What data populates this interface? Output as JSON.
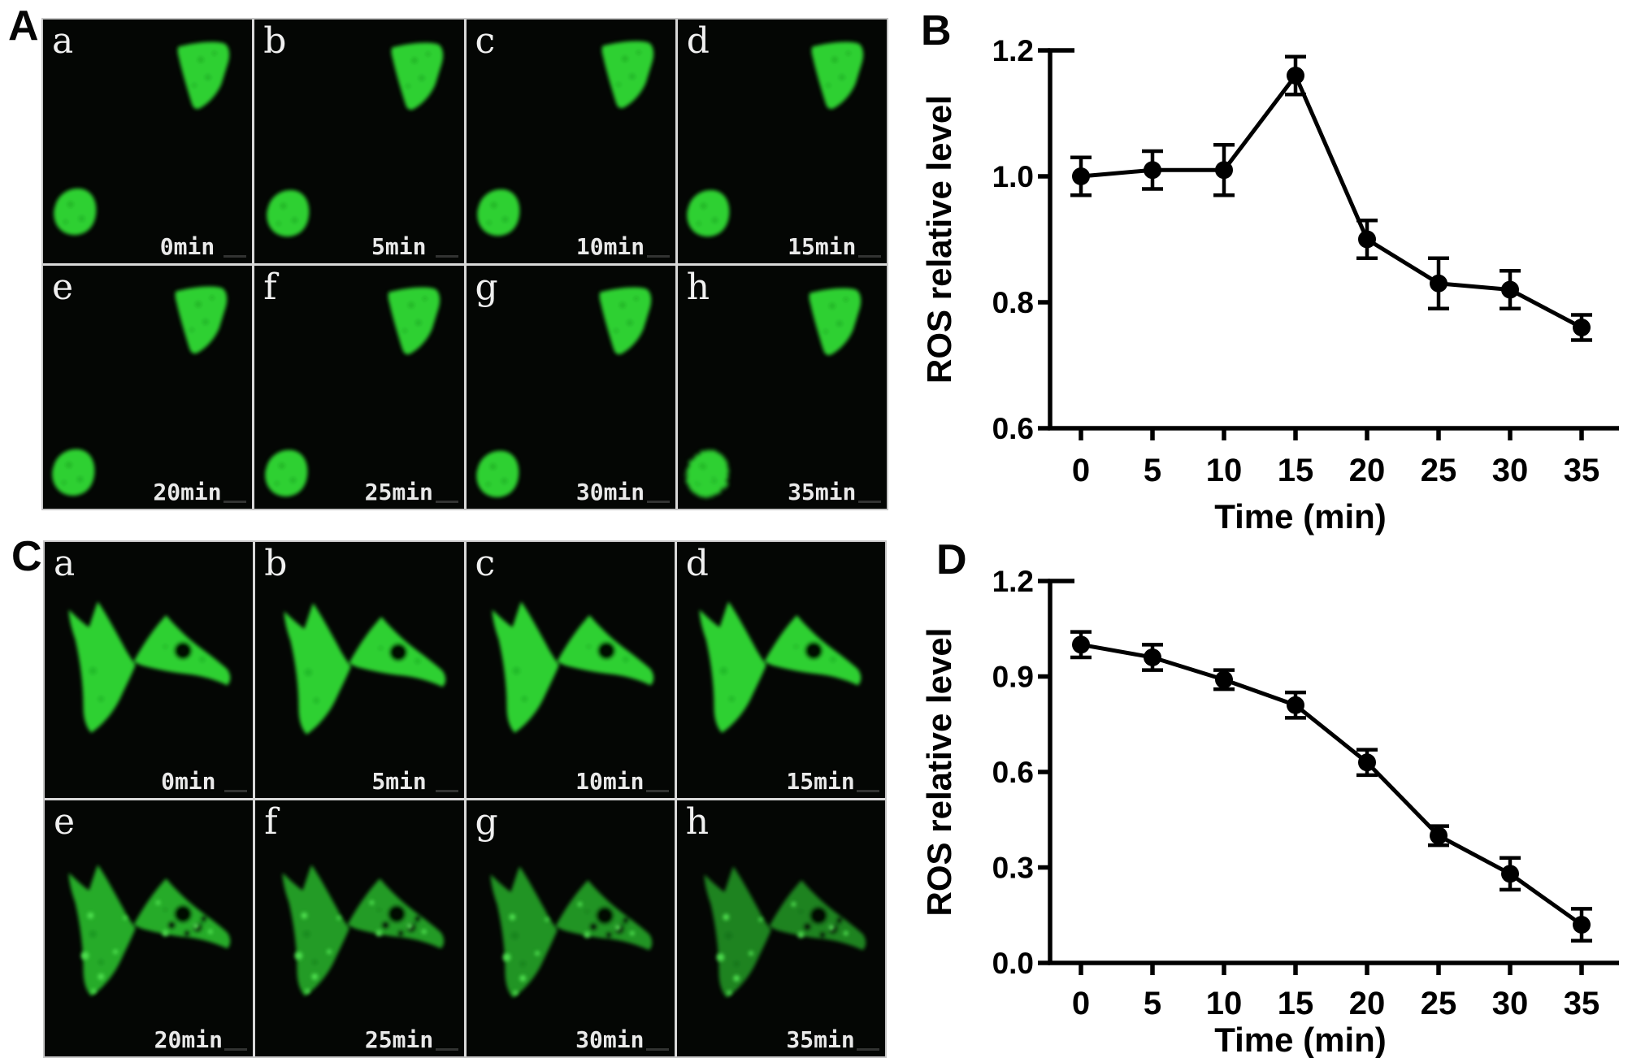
{
  "figure": {
    "panels": {
      "A": {
        "label": "A",
        "cells": [
          {
            "id": "a",
            "time": "0min"
          },
          {
            "id": "b",
            "time": "5min"
          },
          {
            "id": "c",
            "time": "10min"
          },
          {
            "id": "d",
            "time": "15min"
          },
          {
            "id": "e",
            "time": "20min"
          },
          {
            "id": "f",
            "time": "25min"
          },
          {
            "id": "g",
            "time": "30min"
          },
          {
            "id": "h",
            "time": "35min"
          }
        ]
      },
      "B": {
        "label": "B"
      },
      "C": {
        "label": "C",
        "cells": [
          {
            "id": "a",
            "time": "0min"
          },
          {
            "id": "b",
            "time": "5min"
          },
          {
            "id": "c",
            "time": "10min"
          },
          {
            "id": "d",
            "time": "15min"
          },
          {
            "id": "e",
            "time": "20min"
          },
          {
            "id": "f",
            "time": "25min"
          },
          {
            "id": "g",
            "time": "30min"
          },
          {
            "id": "h",
            "time": "35min"
          }
        ]
      },
      "D": {
        "label": "D"
      }
    }
  },
  "colors": {
    "cell_green": "#2fd033",
    "puncta_green": "#54e854",
    "micrograph_background": "#040604",
    "axis_black": "#000000",
    "grid_line": "#d8d8d8"
  },
  "chart_data": [
    {
      "id": "B",
      "type": "line",
      "x": [
        0,
        5,
        10,
        15,
        20,
        25,
        30,
        35
      ],
      "xticklabels": [
        "0",
        "5",
        "10",
        "15",
        "20",
        "25",
        "30",
        "35"
      ],
      "values": [
        1.0,
        1.01,
        1.01,
        1.16,
        0.9,
        0.83,
        0.82,
        0.76
      ],
      "errors": [
        0.03,
        0.03,
        0.04,
        0.03,
        0.03,
        0.04,
        0.03,
        0.02
      ],
      "xlabel": "Time (min)",
      "ylabel": "ROS relative level",
      "ylim": [
        0.6,
        1.2
      ],
      "yticks": [
        0.6,
        0.8,
        1.0,
        1.2
      ],
      "yticklabels": [
        "0.6",
        "0.8",
        "1.0",
        "1.2"
      ],
      "marker": "circle",
      "color": "#000000",
      "grid": false,
      "legend": null
    },
    {
      "id": "D",
      "type": "line",
      "x": [
        0,
        5,
        10,
        15,
        20,
        25,
        30,
        35
      ],
      "xticklabels": [
        "0",
        "5",
        "10",
        "15",
        "20",
        "25",
        "30",
        "35"
      ],
      "values": [
        1.0,
        0.96,
        0.89,
        0.81,
        0.63,
        0.4,
        0.28,
        0.12
      ],
      "errors": [
        0.04,
        0.04,
        0.03,
        0.04,
        0.04,
        0.03,
        0.05,
        0.05
      ],
      "xlabel": "Time (min)",
      "ylabel": "ROS relative level",
      "ylim": [
        0.0,
        1.2
      ],
      "yticks": [
        0.0,
        0.3,
        0.6,
        0.9,
        1.2
      ],
      "yticklabels": [
        "0.0",
        "0.3",
        "0.6",
        "0.9",
        "1.2"
      ],
      "marker": "circle",
      "color": "#000000",
      "grid": false,
      "legend": null
    }
  ]
}
